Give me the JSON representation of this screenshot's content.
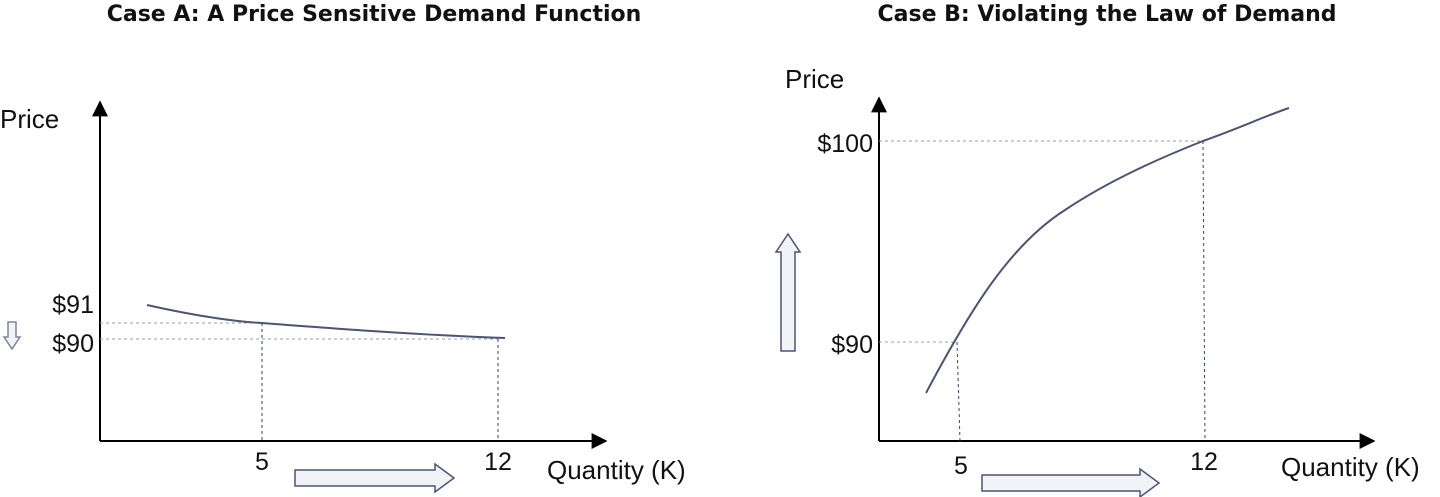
{
  "chart_data": [
    {
      "type": "line",
      "title": "Case A: A Price Sensitive Demand Function",
      "xlabel": "Quantity (K)",
      "ylabel": "Price",
      "x_ticks": [
        "5",
        "12"
      ],
      "y_ticks": [
        "$91",
        "$90"
      ],
      "reference_points": [
        {
          "x": 5,
          "y": 91
        },
        {
          "x": 12,
          "y": 90
        }
      ],
      "curve": [
        {
          "x": 1.5,
          "y": 92.2
        },
        {
          "x": 3,
          "y": 91.5
        },
        {
          "x": 5,
          "y": 91
        },
        {
          "x": 8,
          "y": 90.5
        },
        {
          "x": 12,
          "y": 90
        }
      ],
      "annotations": [
        "price-decrease-arrow",
        "quantity-increase-arrow"
      ],
      "grid": false
    },
    {
      "type": "line",
      "title": "Case B: Violating the Law of Demand",
      "xlabel": "Quantity (K)",
      "ylabel": "Price",
      "x_ticks": [
        "5",
        "12"
      ],
      "y_ticks": [
        "$100",
        "$90"
      ],
      "reference_points": [
        {
          "x": 5,
          "y": 90
        },
        {
          "x": 12,
          "y": 100
        }
      ],
      "curve": [
        {
          "x": 3.5,
          "y": 87.5
        },
        {
          "x": 5,
          "y": 90
        },
        {
          "x": 7,
          "y": 94.5
        },
        {
          "x": 9,
          "y": 97.3
        },
        {
          "x": 12,
          "y": 100
        },
        {
          "x": 14.5,
          "y": 101.7
        }
      ],
      "annotations": [
        "price-increase-arrow",
        "quantity-increase-arrow"
      ],
      "grid": false
    }
  ]
}
